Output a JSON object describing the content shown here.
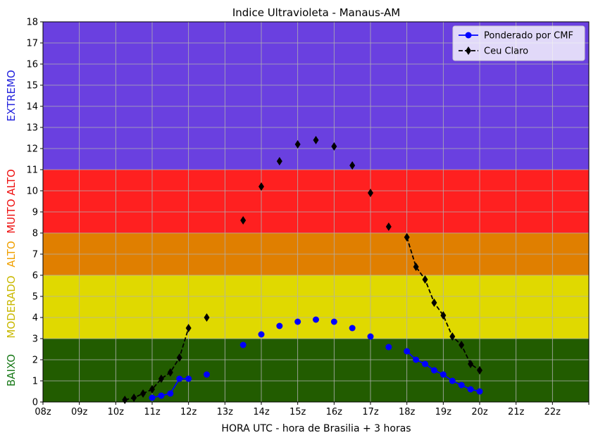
{
  "chart_data": {
    "type": "line",
    "title": "Indice Ultravioleta - Manaus-AM",
    "xlabel": "HORA UTC - hora de Brasilia + 3 horas",
    "ylabel": "",
    "xlim": [
      8,
      23
    ],
    "ylim": [
      0,
      18
    ],
    "grid": true,
    "legend_position": "top-right",
    "x_ticks": [
      {
        "value": 8,
        "label": "08z"
      },
      {
        "value": 9,
        "label": "09z"
      },
      {
        "value": 10,
        "label": "10z"
      },
      {
        "value": 11,
        "label": "11z"
      },
      {
        "value": 12,
        "label": "12z"
      },
      {
        "value": 13,
        "label": "13z"
      },
      {
        "value": 14,
        "label": "14z"
      },
      {
        "value": 15,
        "label": "15z"
      },
      {
        "value": 16,
        "label": "16z"
      },
      {
        "value": 17,
        "label": "17z"
      },
      {
        "value": 18,
        "label": "18z"
      },
      {
        "value": 19,
        "label": "19z"
      },
      {
        "value": 20,
        "label": "20z"
      },
      {
        "value": 21,
        "label": "21z"
      },
      {
        "value": 22,
        "label": "22z"
      },
      {
        "value": 23,
        "label": ""
      }
    ],
    "y_ticks": [
      0,
      1,
      2,
      3,
      4,
      5,
      6,
      7,
      8,
      9,
      10,
      11,
      12,
      13,
      14,
      15,
      16,
      17,
      18
    ],
    "bands": [
      {
        "label": "BAIXO",
        "from": 0,
        "to": 3,
        "fill": "#225c00",
        "text_color": "#1a7a1a"
      },
      {
        "label": "MODERADO",
        "from": 3,
        "to": 6,
        "fill": "#e0d900",
        "text_color": "#c9b800"
      },
      {
        "label": "ALTO",
        "from": 6,
        "to": 8,
        "fill": "#e07f00",
        "text_color": "#f0a000"
      },
      {
        "label": "MUITO ALTO",
        "from": 8,
        "to": 11,
        "fill": "#ff2020",
        "text_color": "#ee1111"
      },
      {
        "label": "EXTREMO",
        "from": 11,
        "to": 18,
        "fill": "#6a40e0",
        "text_color": "#2222dd"
      }
    ],
    "series": [
      {
        "name": "Ponderado por CMF",
        "color": "#0000ff",
        "marker": "circle",
        "linestyle": "solid",
        "points": [
          [
            11.0,
            0.2
          ],
          [
            11.25,
            0.3
          ],
          [
            11.5,
            0.4
          ],
          [
            11.75,
            1.1
          ],
          [
            12.0,
            1.1
          ],
          [
            12.5,
            1.3
          ],
          [
            13.5,
            2.7
          ],
          [
            14.0,
            3.2
          ],
          [
            14.5,
            3.6
          ],
          [
            15.0,
            3.8
          ],
          [
            15.5,
            3.9
          ],
          [
            16.0,
            3.8
          ],
          [
            16.5,
            3.5
          ],
          [
            17.0,
            3.1
          ],
          [
            17.5,
            2.6
          ],
          [
            18.0,
            2.4
          ],
          [
            18.25,
            2.0
          ],
          [
            18.5,
            1.8
          ],
          [
            18.75,
            1.5
          ],
          [
            19.0,
            1.3
          ],
          [
            19.25,
            1.0
          ],
          [
            19.5,
            0.8
          ],
          [
            19.75,
            0.6
          ],
          [
            20.0,
            0.5
          ]
        ],
        "line_segments": [
          [
            0,
            4
          ],
          [
            15,
            23
          ]
        ]
      },
      {
        "name": "Ceu Claro",
        "color": "#000000",
        "marker": "diamond",
        "linestyle": "dashed",
        "points": [
          [
            10.25,
            0.1
          ],
          [
            10.5,
            0.2
          ],
          [
            10.75,
            0.4
          ],
          [
            11.0,
            0.6
          ],
          [
            11.25,
            1.1
          ],
          [
            11.5,
            1.4
          ],
          [
            11.75,
            2.1
          ],
          [
            12.0,
            3.5
          ],
          [
            12.5,
            4.0
          ],
          [
            13.5,
            8.6
          ],
          [
            14.0,
            10.2
          ],
          [
            14.5,
            11.4
          ],
          [
            15.0,
            12.2
          ],
          [
            15.5,
            12.4
          ],
          [
            16.0,
            12.1
          ],
          [
            16.5,
            11.2
          ],
          [
            17.0,
            9.9
          ],
          [
            17.5,
            8.3
          ],
          [
            18.0,
            7.8
          ],
          [
            18.25,
            6.4
          ],
          [
            18.5,
            5.8
          ],
          [
            18.75,
            4.7
          ],
          [
            19.0,
            4.1
          ],
          [
            19.25,
            3.1
          ],
          [
            19.5,
            2.7
          ],
          [
            19.75,
            1.8
          ],
          [
            20.0,
            1.5
          ]
        ],
        "line_segments": [
          [
            0,
            7
          ],
          [
            18,
            26
          ]
        ]
      }
    ]
  }
}
